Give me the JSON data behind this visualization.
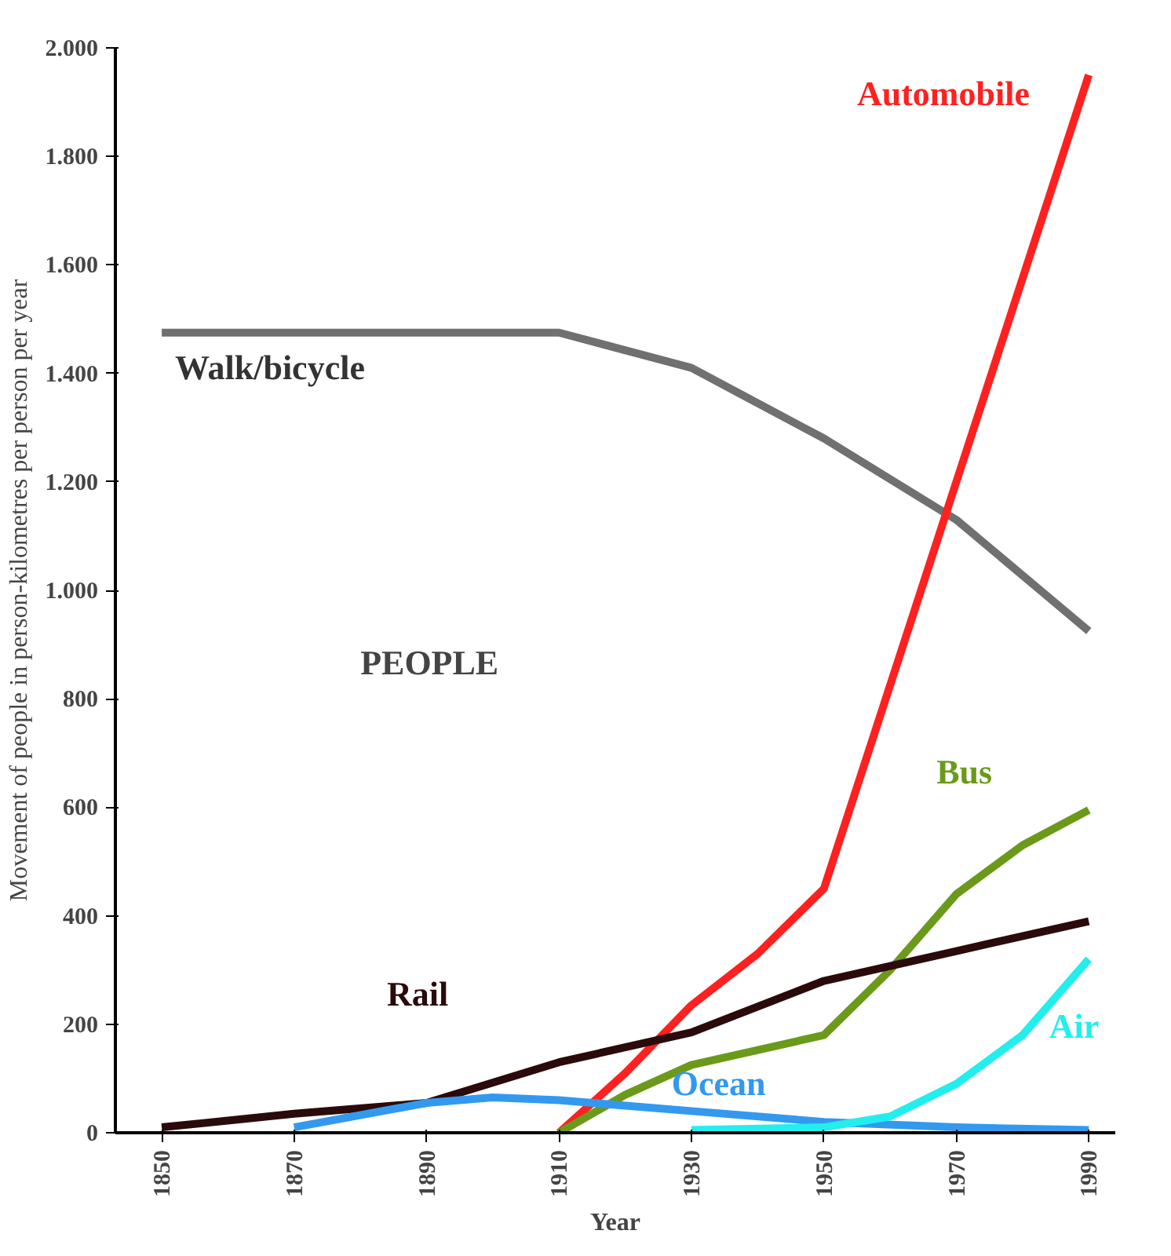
{
  "chart_data": {
    "type": "line",
    "xlabel": "Year",
    "ylabel": "Movement of people in person-kilometres per person per year",
    "annotations": [
      "PEOPLE"
    ],
    "xlim": [
      1843,
      1994
    ],
    "ylim": [
      0,
      2000
    ],
    "xticks": [
      1850,
      1870,
      1890,
      1910,
      1930,
      1950,
      1970,
      1990
    ],
    "yticks": [
      0,
      {
        "value": 200,
        "label": "200"
      },
      {
        "value": 400,
        "label": "400"
      },
      {
        "value": 600,
        "label": "600"
      },
      {
        "value": 800,
        "label": "800"
      },
      {
        "value": 1000,
        "label": "1.000"
      },
      {
        "value": 1200,
        "label": "1.200"
      },
      {
        "value": 1400,
        "label": "1.400"
      },
      {
        "value": 1600,
        "label": "1.600"
      },
      {
        "value": 1800,
        "label": "1.800"
      },
      {
        "value": 2000,
        "label": "2.000"
      }
    ],
    "grid": false,
    "legend": false,
    "series": [
      {
        "name": "Walk/bicycle",
        "color": "#707070",
        "x": [
          1850,
          1870,
          1890,
          1910,
          1930,
          1950,
          1970,
          1990
        ],
        "values": [
          1475,
          1475,
          1475,
          1475,
          1410,
          1280,
          1130,
          925
        ]
      },
      {
        "name": "Automobile",
        "color": "#ff2020",
        "x": [
          1910,
          1920,
          1930,
          1940,
          1950,
          1970,
          1990
        ],
        "values": [
          0,
          110,
          235,
          330,
          450,
          1200,
          1950
        ]
      },
      {
        "name": "Bus",
        "color": "#6b9a1a",
        "x": [
          1910,
          1920,
          1930,
          1950,
          1960,
          1970,
          1980,
          1990
        ],
        "values": [
          0,
          70,
          125,
          180,
          300,
          440,
          530,
          595
        ]
      },
      {
        "name": "Rail",
        "color": "#2a0a0a",
        "x": [
          1850,
          1870,
          1890,
          1910,
          1930,
          1950,
          1970,
          1990
        ],
        "values": [
          10,
          35,
          55,
          130,
          185,
          280,
          335,
          390
        ]
      },
      {
        "name": "Ocean",
        "color": "#3399ee",
        "x": [
          1870,
          1890,
          1900,
          1910,
          1930,
          1950,
          1970,
          1990
        ],
        "values": [
          10,
          55,
          65,
          60,
          40,
          20,
          10,
          5
        ]
      },
      {
        "name": "Air",
        "color": "#22eeee",
        "x": [
          1930,
          1950,
          1960,
          1970,
          1980,
          1990
        ],
        "values": [
          5,
          10,
          30,
          90,
          180,
          320
        ]
      }
    ]
  }
}
